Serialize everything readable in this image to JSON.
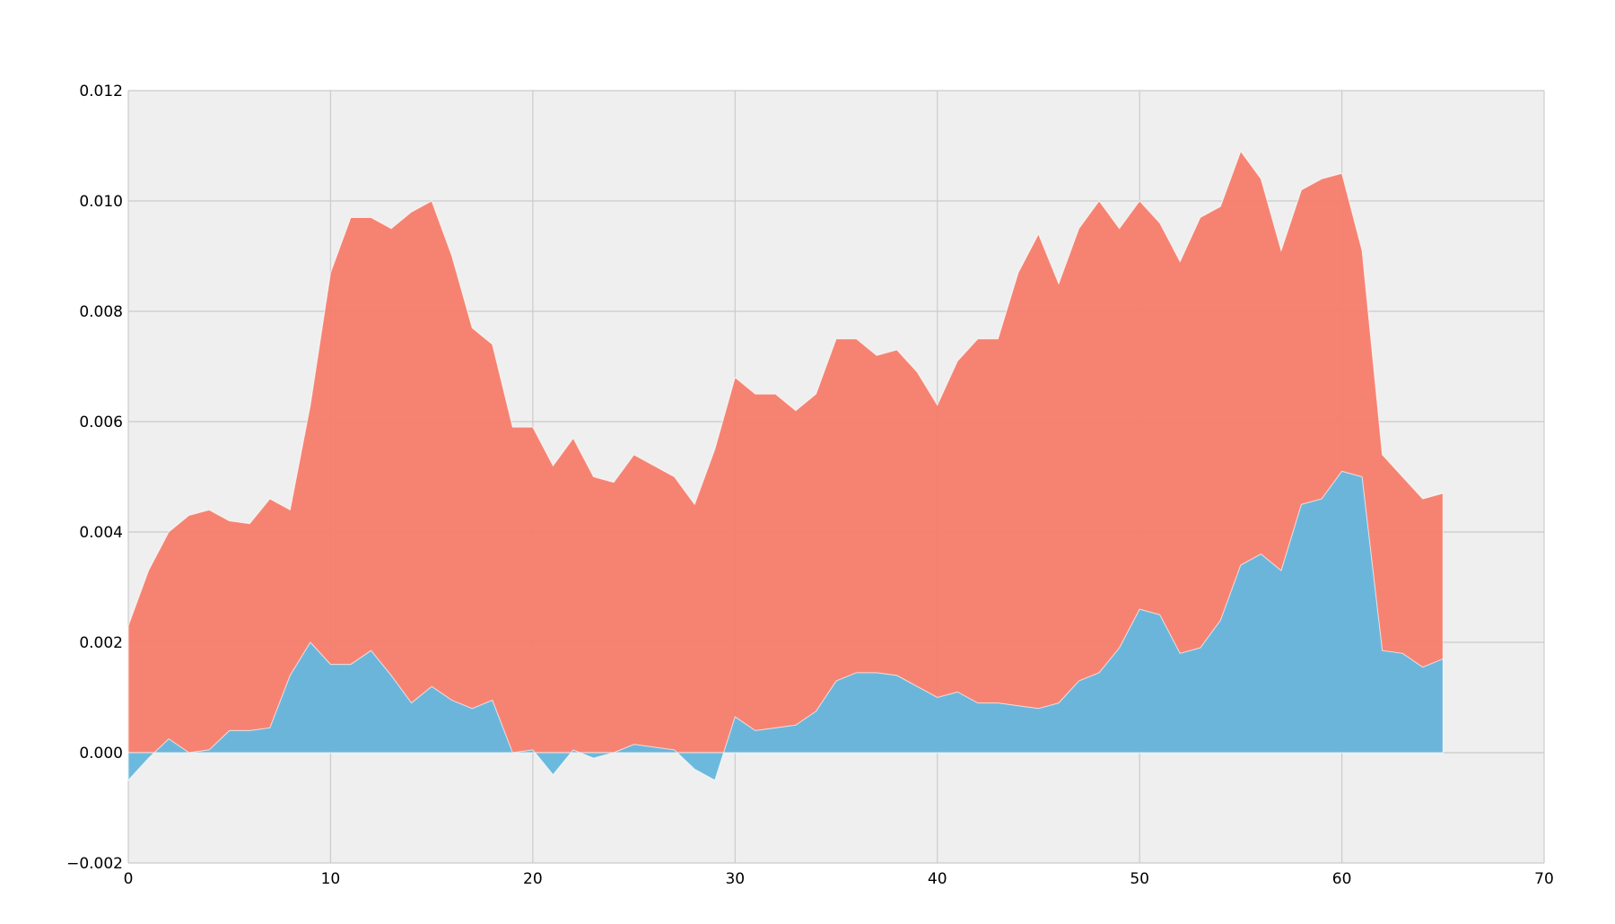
{
  "chart_data": {
    "type": "area",
    "xlim": [
      0,
      70
    ],
    "ylim": [
      -0.002,
      0.012
    ],
    "x_ticks": [
      0,
      10,
      20,
      30,
      40,
      50,
      60,
      70
    ],
    "y_ticks": [
      -0.002,
      0.0,
      0.002,
      0.004,
      0.006,
      0.008,
      0.01,
      0.012
    ],
    "x_tick_labels": [
      "0",
      "10",
      "20",
      "30",
      "40",
      "50",
      "60",
      "70"
    ],
    "y_tick_labels": [
      "−0.002",
      "0.000",
      "0.002",
      "0.004",
      "0.006",
      "0.008",
      "0.010",
      "0.012"
    ],
    "grid": true,
    "background": "#efefef",
    "x": [
      0,
      1,
      2,
      3,
      4,
      5,
      6,
      7,
      8,
      9,
      10,
      11,
      12,
      13,
      14,
      15,
      16,
      17,
      18,
      19,
      20,
      21,
      22,
      23,
      24,
      25,
      26,
      27,
      28,
      29,
      30,
      31,
      32,
      33,
      34,
      35,
      36,
      37,
      38,
      39,
      40,
      41,
      42,
      43,
      44,
      45,
      46,
      47,
      48,
      49,
      50,
      51,
      52,
      53,
      54,
      55,
      56,
      57,
      58,
      59,
      60,
      61,
      62,
      63,
      64,
      65
    ],
    "series": [
      {
        "color": "#f67c6a",
        "values": [
          0.0023,
          0.0033,
          0.004,
          0.0043,
          0.0044,
          0.0042,
          0.00415,
          0.0046,
          0.0044,
          0.0063,
          0.0087,
          0.0097,
          0.0097,
          0.0095,
          0.0098,
          0.01,
          0.009,
          0.0077,
          0.0074,
          0.0059,
          0.0059,
          0.0052,
          0.0057,
          0.005,
          0.0049,
          0.0054,
          0.0052,
          0.005,
          0.0045,
          0.0055,
          0.0068,
          0.0065,
          0.0065,
          0.0062,
          0.0065,
          0.0075,
          0.0075,
          0.0072,
          0.0073,
          0.0069,
          0.0063,
          0.0071,
          0.0075,
          0.0075,
          0.0087,
          0.0094,
          0.0085,
          0.0095,
          0.01,
          0.0095,
          0.01,
          0.0096,
          0.0089,
          0.0097,
          0.0099,
          0.0109,
          0.0104,
          0.0091,
          0.0102,
          0.0104,
          0.0105,
          0.0091,
          0.0054,
          0.005,
          0.0046,
          0.0047
        ]
      },
      {
        "color": "#67b7dd",
        "values": [
          -0.0005,
          -0.0001,
          0.00025,
          0.0,
          5e-05,
          0.0004,
          0.0004,
          0.00045,
          0.0014,
          0.002,
          0.0016,
          0.0016,
          0.00185,
          0.0014,
          0.0009,
          0.0012,
          0.00095,
          0.0008,
          0.00095,
          0.0,
          5e-05,
          -0.0004,
          5e-05,
          -0.0001,
          0.0,
          0.00015,
          0.0001,
          5e-05,
          -0.0003,
          -0.0005,
          0.00065,
          0.0004,
          0.00045,
          0.0005,
          0.00075,
          0.0013,
          0.00145,
          0.00145,
          0.0014,
          0.0012,
          0.001,
          0.0011,
          0.0009,
          0.0009,
          0.00085,
          0.0008,
          0.0009,
          0.0013,
          0.00145,
          0.0019,
          0.0026,
          0.0025,
          0.0018,
          0.0019,
          0.0024,
          0.0034,
          0.0036,
          0.0033,
          0.0045,
          0.0046,
          0.0051,
          0.005,
          0.00185,
          0.0018,
          0.00155,
          0.0017
        ]
      }
    ]
  }
}
